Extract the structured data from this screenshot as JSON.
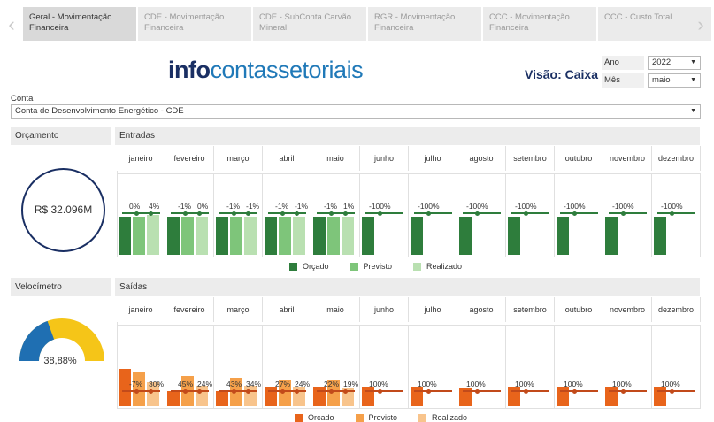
{
  "tabs": [
    {
      "label": "Geral - Movimentação Financeira",
      "active": true
    },
    {
      "label": "CDE - Movimentação Financeira",
      "active": false
    },
    {
      "label": "CDE - SubConta Carvão Mineral",
      "active": false
    },
    {
      "label": "RGR - Movimentação Financeira",
      "active": false
    },
    {
      "label": "CCC - Movimentação Financeira",
      "active": false
    },
    {
      "label": "CCC - Custo Total",
      "active": false
    }
  ],
  "header": {
    "logo_part1": "info",
    "logo_part2": "contassetoriais",
    "visao": "Visão: Caixa"
  },
  "filters": {
    "ano_label": "Ano",
    "ano_value": "2022",
    "mes_label": "Mês",
    "mes_value": "maio",
    "conta_label": "Conta",
    "conta_value": "Conta de Desenvolvimento Energético - CDE"
  },
  "orcamento": {
    "title": "Orçamento",
    "value": "R$ 32.096M"
  },
  "velocimetro": {
    "title": "Velocímetro",
    "value": "38,88%",
    "fraction": 0.3888
  },
  "months": [
    "janeiro",
    "fevereiro",
    "março",
    "abril",
    "maio",
    "junho",
    "julho",
    "agosto",
    "setembro",
    "outubro",
    "novembro",
    "dezembro"
  ],
  "chart_data": [
    {
      "type": "bar",
      "title": "Entradas",
      "categories": [
        "janeiro",
        "fevereiro",
        "março",
        "abril",
        "maio",
        "junho",
        "julho",
        "agosto",
        "setembro",
        "outubro",
        "novembro",
        "dezembro"
      ],
      "series": [
        {
          "name": "Orçado",
          "values": [
            1.0,
            1.0,
            1.0,
            1.0,
            1.0,
            1.0,
            1.0,
            1.0,
            1.0,
            1.0,
            1.0,
            1.0
          ]
        },
        {
          "name": "Previsto",
          "values": [
            1.0,
            0.99,
            0.99,
            0.99,
            0.99,
            0,
            0,
            0,
            0,
            0,
            0,
            0
          ]
        },
        {
          "name": "Realizado",
          "values": [
            1.04,
            1.0,
            0.99,
            0.99,
            1.01,
            0,
            0,
            0,
            0,
            0,
            0,
            0
          ]
        }
      ],
      "labels_previsto": [
        "0%",
        "-1%",
        "-1%",
        "-1%",
        "-1%",
        "-100%",
        "-100%",
        "-100%",
        "-100%",
        "-100%",
        "-100%",
        "-100%"
      ],
      "labels_realizado": [
        "4%",
        "0%",
        "-1%",
        "-1%",
        "1%",
        "",
        "",
        "",
        "",
        "",
        "",
        ""
      ],
      "colors": {
        "Orçado": "#2e7d3c",
        "Previsto": "#7ec57a",
        "Realizado": "#b9e0b1",
        "line": "#2e7d3c"
      },
      "legend": [
        "Orçado",
        "Previsto",
        "Realizado"
      ]
    },
    {
      "type": "bar",
      "title": "Saídas",
      "categories": [
        "janeiro",
        "fevereiro",
        "março",
        "abril",
        "maio",
        "junho",
        "julho",
        "agosto",
        "setembro",
        "outubro",
        "novembro",
        "dezembro"
      ],
      "series": [
        {
          "name": "Orcado",
          "values": [
            1.55,
            0.63,
            0.63,
            0.76,
            0.77,
            0.77,
            0.77,
            0.73,
            0.78,
            0.78,
            0.8,
            0.78
          ]
        },
        {
          "name": "Previsto",
          "values": [
            1.44,
            1.26,
            1.2,
            1.1,
            1.1,
            0,
            0,
            0,
            0,
            0,
            0,
            0
          ]
        },
        {
          "name": "Realizado",
          "values": [
            1.0,
            0.86,
            0.84,
            0.79,
            0.75,
            0,
            0,
            0,
            0,
            0,
            0,
            0
          ]
        }
      ],
      "labels_previsto": [
        "-7%",
        "45%",
        "43%",
        "27%",
        "22%",
        "100%",
        "100%",
        "100%",
        "100%",
        "100%",
        "100%",
        "100%"
      ],
      "labels_realizado": [
        "30%",
        "24%",
        "34%",
        "24%",
        "19%",
        "",
        "",
        "",
        "",
        "",
        "",
        ""
      ],
      "colors": {
        "Orcado": "#e8641b",
        "Previsto": "#f5a04a",
        "Realizado": "#f8c48c",
        "line": "#c24a1a"
      },
      "legend": [
        "Orcado",
        "Previsto",
        "Realizado"
      ]
    }
  ]
}
